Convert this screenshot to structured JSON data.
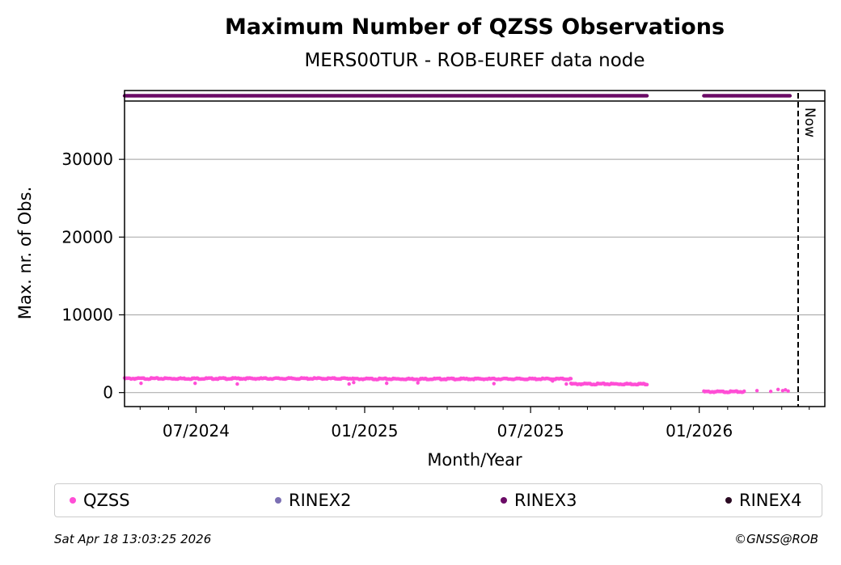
{
  "chart_data": {
    "type": "scatter",
    "title": "Maximum Number of QZSS Observations",
    "subtitle": "MERS00TUR - ROB-EUREF data node",
    "xlabel": "Month/Year",
    "ylabel": "Max. nr. of Obs.",
    "xlim": [
      "2024-04-14",
      "2026-05-18"
    ],
    "ylim": [
      -1800,
      37500
    ],
    "grid": "y",
    "x_tick_labels": [
      "07/2024",
      "01/2025",
      "07/2025",
      "01/2026"
    ],
    "x_ticks": [
      "2024-07-01",
      "2025-01-01",
      "2025-07-01",
      "2026-01-01"
    ],
    "y_ticks": [
      0,
      10000,
      20000,
      30000
    ],
    "now_label": "Now",
    "now_date": "2026-04-18",
    "series": [
      {
        "name": "QZSS",
        "color": "#ff4ed6",
        "segments": [
          {
            "start": "2024-04-14",
            "end": "2024-12-19",
            "value": 1850
          },
          {
            "start": "2024-12-19",
            "end": "2025-08-14",
            "value": 1800
          },
          {
            "start": "2025-08-14",
            "end": "2025-11-05",
            "value": 1150
          },
          {
            "start": "2026-01-06",
            "end": "2026-02-19",
            "value": 150
          }
        ],
        "points": [
          {
            "x": "2024-05-02",
            "y": 1200
          },
          {
            "x": "2024-06-30",
            "y": 1200
          },
          {
            "x": "2024-08-15",
            "y": 1100
          },
          {
            "x": "2024-12-15",
            "y": 1100
          },
          {
            "x": "2024-12-20",
            "y": 1300
          },
          {
            "x": "2025-01-25",
            "y": 1200
          },
          {
            "x": "2025-02-28",
            "y": 1250
          },
          {
            "x": "2025-05-22",
            "y": 1150
          },
          {
            "x": "2025-07-25",
            "y": 1500
          },
          {
            "x": "2025-08-09",
            "y": 1100
          },
          {
            "x": "2026-03-05",
            "y": 250
          },
          {
            "x": "2026-03-20",
            "y": 150
          },
          {
            "x": "2026-03-28",
            "y": 400
          },
          {
            "x": "2026-04-02",
            "y": 250
          },
          {
            "x": "2026-04-05",
            "y": 350
          },
          {
            "x": "2026-04-08",
            "y": 200
          }
        ]
      },
      {
        "name": "RINEX2",
        "color": "#7b6fb3",
        "segments": [],
        "points": []
      },
      {
        "name": "RINEX3",
        "color": "#6b0b66",
        "segments": [
          {
            "start": "2024-04-14",
            "end": "2025-11-05"
          },
          {
            "start": "2026-01-06",
            "end": "2026-04-10"
          }
        ],
        "points": []
      },
      {
        "name": "RINEX4",
        "color": "#2a0a22",
        "segments": [],
        "points": []
      }
    ],
    "legend_position": "bottom"
  },
  "footer": {
    "timestamp": "Sat Apr 18 13:03:25 2026",
    "credit": "©GNSS@ROB"
  }
}
